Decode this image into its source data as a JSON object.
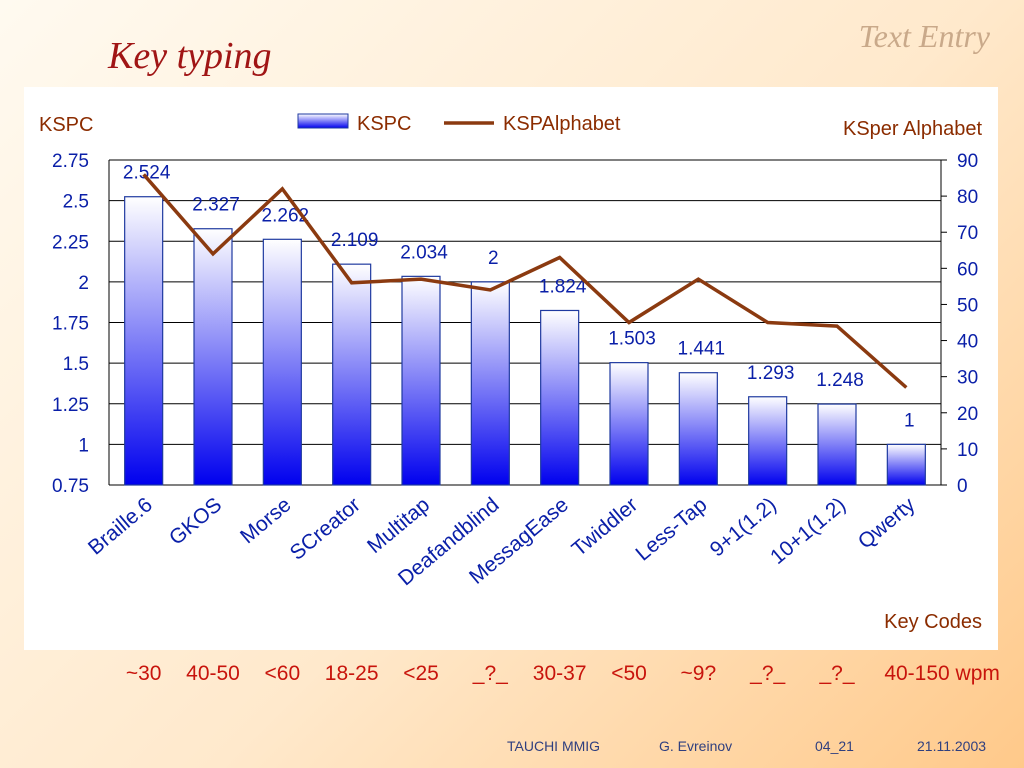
{
  "slide": {
    "title": "Key typing",
    "section": "Text Entry"
  },
  "chart_data": {
    "type": "bar",
    "categories": [
      "Braille.6",
      "GKOS",
      "Morse",
      "SCreator",
      "Multitap",
      "Deafandblind",
      "MessagEase",
      "Twiddler",
      "Less-Tap",
      "9+1(1.2)",
      "10+1(1.2)",
      "Qwerty"
    ],
    "series": [
      {
        "name": "KSPC",
        "type": "bar",
        "axis": "left",
        "values": [
          2.524,
          2.327,
          2.262,
          2.109,
          2.034,
          2,
          1.824,
          1.503,
          1.441,
          1.293,
          1.248,
          1
        ],
        "labels": [
          "2.524",
          "2.327",
          "2.262",
          "2.109",
          "2.034",
          "2",
          "1.824",
          "1.503",
          "1.441",
          "1.293",
          "1.248",
          "1"
        ]
      },
      {
        "name": "KSPAlphabet",
        "type": "line",
        "axis": "right",
        "values": [
          86,
          64,
          82,
          56,
          57,
          54,
          63,
          45,
          57,
          45,
          44,
          27
        ]
      }
    ],
    "y_left": {
      "label": "KSPC",
      "min": 0.75,
      "max": 2.75,
      "ticks": [
        "0.75",
        "1",
        "1.25",
        "1.5",
        "1.75",
        "2",
        "2.25",
        "2.5",
        "2.75"
      ]
    },
    "y_right": {
      "label": "KSper Alphabet",
      "min": 0,
      "max": 90,
      "ticks": [
        "0",
        "10",
        "20",
        "30",
        "40",
        "50",
        "60",
        "70",
        "80",
        "90"
      ]
    },
    "x_label": "Key Codes",
    "legend": {
      "position": "top-center",
      "bar_label": "KSPC",
      "line_label": "KSPAlphabet"
    },
    "grid": true,
    "colors": {
      "bar_top": "#ffffff",
      "bar_bottom": "#0000ee",
      "bar_outline": "#1f3aa0",
      "line": "#8b3a10",
      "text": "#0a1fa8",
      "axis_title": "#8b2c00"
    }
  },
  "wpm_labels": [
    "~30",
    "40-50",
    "<60",
    "18-25",
    "<25",
    "_?_",
    "30-37",
    "<50",
    "~9?",
    "_?_",
    "_?_",
    "40-150 wpm"
  ],
  "footer": {
    "org": "TAUCHI MMIG",
    "author": "G. Evreinov",
    "slide_no": "04_21",
    "date": "21.11.2003"
  }
}
